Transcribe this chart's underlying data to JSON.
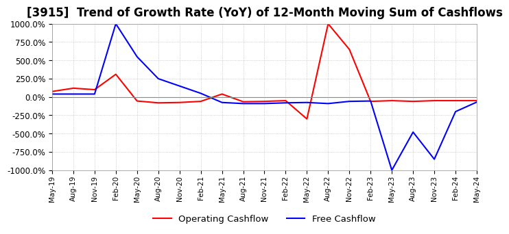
{
  "title": "[3915]  Trend of Growth Rate (YoY) of 12-Month Moving Sum of Cashflows",
  "title_fontsize": 12,
  "ylim": [
    -1000,
    1000
  ],
  "yticks": [
    1000,
    750,
    500,
    250,
    0,
    -250,
    -500,
    -750,
    -1000
  ],
  "background_color": "#ffffff",
  "grid_color": "#aaaaaa",
  "operating_color": "#ff0000",
  "free_color": "#0000ff",
  "legend_labels": [
    "Operating Cashflow",
    "Free Cashflow"
  ],
  "x_labels": [
    "May-19",
    "Aug-19",
    "Nov-19",
    "Feb-20",
    "May-20",
    "Aug-20",
    "Nov-20",
    "Feb-21",
    "May-21",
    "Aug-21",
    "Nov-21",
    "Feb-22",
    "May-22",
    "Aug-22",
    "Nov-22",
    "Feb-23",
    "May-23",
    "Aug-23",
    "Nov-23",
    "Feb-24",
    "May-24"
  ],
  "operating_y": [
    75,
    120,
    100,
    310,
    -55,
    -80,
    -75,
    -60,
    40,
    -65,
    -60,
    -50,
    -300,
    1000,
    650,
    -60,
    -50,
    -60,
    -50,
    -50,
    -50
  ],
  "free_y": [
    40,
    40,
    40,
    1000,
    550,
    250,
    150,
    50,
    -75,
    -90,
    -90,
    -80,
    -75,
    -90,
    -60,
    -55,
    -1000,
    -480,
    -850,
    -200,
    -70
  ]
}
